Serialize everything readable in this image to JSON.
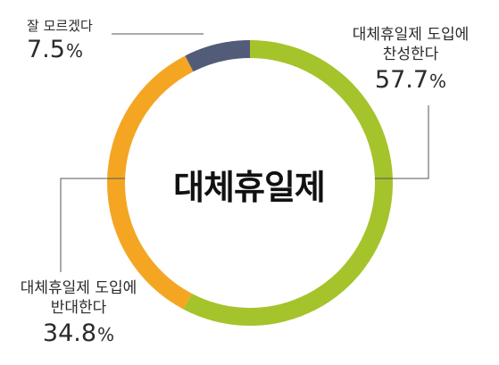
{
  "chart_data": {
    "type": "pie",
    "title": "대체휴일제",
    "slices": [
      {
        "label_lines": [
          "대체휴일제 도입에",
          "찬성한다"
        ],
        "value": 57.7,
        "color": "#a5c32b"
      },
      {
        "label_lines": [
          "대체휴일제 도입에",
          "반대한다"
        ],
        "value": 34.8,
        "color": "#f4a623"
      },
      {
        "label_lines": [
          "잘 모르겠다"
        ],
        "value": 7.5,
        "color": "#525c79"
      }
    ],
    "unit": "%",
    "donut": true
  }
}
